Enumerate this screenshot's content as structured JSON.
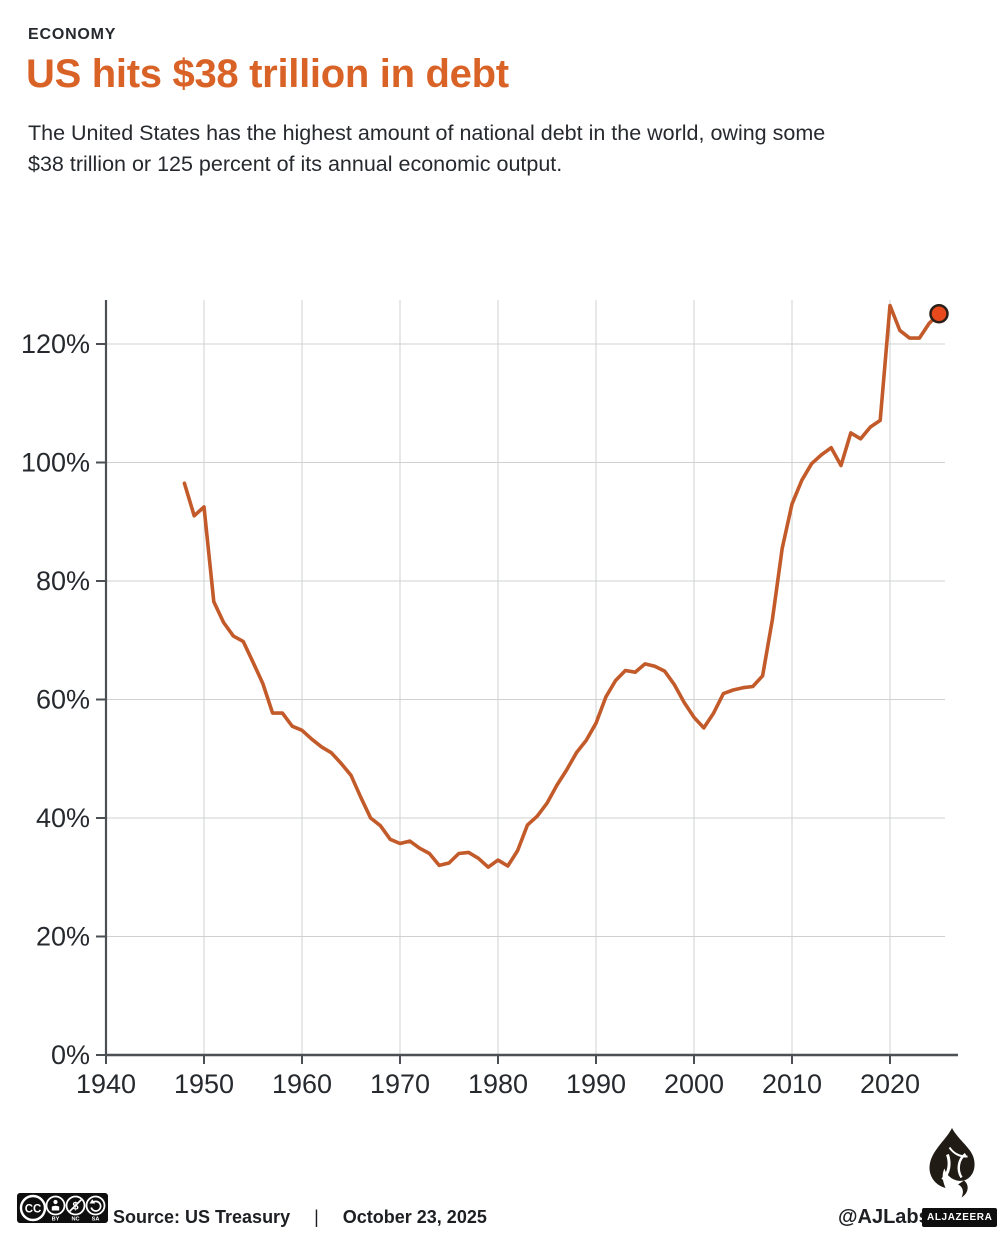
{
  "header": {
    "kicker": "ECONOMY",
    "title": "US hits $38 trillion in debt",
    "subtitle_line1": "The United States has the highest amount of national debt in the world, owing some",
    "subtitle_line2": "$38 trillion or 125 percent of its annual economic output.",
    "title_color": "#d96327",
    "text_color": "#26292e"
  },
  "chart_data": {
    "type": "line",
    "title": "US hits $38 trillion in debt",
    "xlabel": "",
    "ylabel": "",
    "grid": true,
    "legend": "none",
    "xlim": [
      1940,
      2030
    ],
    "ylim": [
      0,
      127.5
    ],
    "line_color": "#c35a2a",
    "x": [
      1948,
      1949,
      1950,
      1951,
      1952,
      1953,
      1954,
      1955,
      1956,
      1957,
      1958,
      1959,
      1960,
      1961,
      1962,
      1963,
      1964,
      1965,
      1966,
      1967,
      1968,
      1969,
      1970,
      1971,
      1972,
      1973,
      1974,
      1975,
      1976,
      1977,
      1978,
      1979,
      1980,
      1981,
      1982,
      1983,
      1984,
      1985,
      1986,
      1987,
      1988,
      1989,
      1990,
      1991,
      1992,
      1993,
      1994,
      1995,
      1996,
      1997,
      1998,
      1999,
      2000,
      2001,
      2002,
      2003,
      2004,
      2005,
      2006,
      2007,
      2008,
      2009,
      2010,
      2011,
      2012,
      2013,
      2014,
      2015,
      2016,
      2017,
      2018,
      2019,
      2020,
      2021,
      2022,
      2023,
      2024,
      2025
    ],
    "y": [
      96.5,
      91,
      92.5,
      76.5,
      73,
      70.7,
      69.8,
      66.3,
      62.7,
      57.7,
      57.7,
      55.5,
      54.8,
      53.3,
      52,
      51,
      49.2,
      47.2,
      43.5,
      40,
      38.7,
      36.4,
      35.7,
      36.1,
      34.9,
      34,
      32,
      32.4,
      34,
      34.2,
      33.2,
      31.7,
      32.9,
      31.9,
      34.5,
      38.8,
      40.3,
      42.5,
      45.5,
      48.1,
      51,
      53.1,
      56,
      60.4,
      63.2,
      64.9,
      64.6,
      66,
      65.6,
      64.8,
      62.5,
      59.5,
      57,
      55.2,
      57.7,
      61,
      61.6,
      62,
      62.2,
      64,
      73.5,
      85.5,
      93,
      97,
      99.8,
      101.3,
      102.5,
      99.5,
      105,
      104,
      106,
      107.1,
      126.5,
      122.3,
      121,
      121,
      123.5,
      125.1
    ],
    "end_dot": {
      "year": 2025,
      "value": 125.1,
      "fill": "#e8491d",
      "stroke": "#2b2018"
    },
    "y_ticks": [
      {
        "v": 0,
        "label": "0%"
      },
      {
        "v": 20,
        "label": "20%"
      },
      {
        "v": 40,
        "label": "40%"
      },
      {
        "v": 60,
        "label": "60%"
      },
      {
        "v": 80,
        "label": "80%"
      },
      {
        "v": 100,
        "label": "100%"
      },
      {
        "v": 120,
        "label": "120%"
      }
    ],
    "x_ticks": [
      {
        "v": 1940,
        "label": "1940"
      },
      {
        "v": 1950,
        "label": "1950"
      },
      {
        "v": 1960,
        "label": "1960"
      },
      {
        "v": 1970,
        "label": "1970"
      },
      {
        "v": 1980,
        "label": "1980"
      },
      {
        "v": 1990,
        "label": "1990"
      },
      {
        "v": 2000,
        "label": "2000"
      },
      {
        "v": 2010,
        "label": "2010"
      },
      {
        "v": 2020,
        "label": "2020"
      }
    ]
  },
  "footer": {
    "license_labels": [
      "BY",
      "NC",
      "SA"
    ],
    "cc_text": "CC",
    "source_label": "Source: US Treasury",
    "separator": "|",
    "date": "October 23, 2025",
    "credit": "@AJLabs",
    "brand": "ALJAZEERA"
  }
}
